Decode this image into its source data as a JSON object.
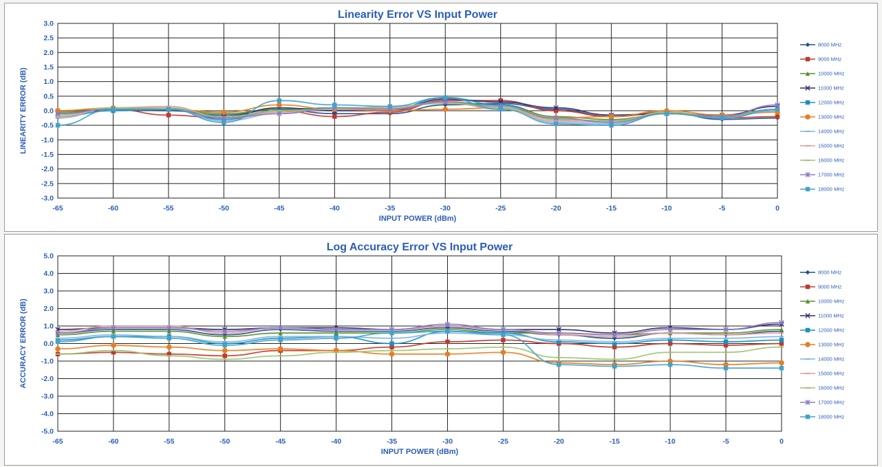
{
  "chart_data": [
    {
      "type": "line",
      "title": "Linearity Error VS Input Power",
      "xlabel": "INPUT POWER (dBm)",
      "ylabel": "LINEARITY ERROR (dB)",
      "x": [
        -65,
        -60,
        -55,
        -50,
        -45,
        -40,
        -35,
        -30,
        -25,
        -20,
        -15,
        -10,
        -5,
        0
      ],
      "xlim": [
        -65,
        0
      ],
      "ylim": [
        -3.0,
        3.0
      ],
      "yticks": [
        "3.0",
        "2.5",
        "2.0",
        "1.5",
        "1.0",
        "0.5",
        "0.0",
        "-0.5",
        "-1.0",
        "-1.5",
        "-2.0",
        "-2.5",
        "-3.0"
      ],
      "xticks": [
        "-65",
        "-60",
        "-55",
        "-50",
        "-45",
        "-40",
        "-35",
        "-30",
        "-25",
        "-20",
        "-15",
        "-10",
        "-5",
        "0"
      ],
      "grid": true,
      "legend_position": "right",
      "series": [
        {
          "name": "8000 MHz",
          "color": "#1f4e8c",
          "values": [
            0.0,
            0.05,
            0.0,
            -0.15,
            0.05,
            -0.1,
            -0.1,
            0.2,
            0.25,
            0.05,
            -0.2,
            -0.05,
            -0.3,
            -0.25
          ]
        },
        {
          "name": "9000 MHz",
          "color": "#c0392b",
          "values": [
            0.0,
            0.05,
            -0.15,
            -0.25,
            0.0,
            -0.2,
            -0.05,
            0.35,
            0.35,
            0.0,
            -0.2,
            -0.05,
            -0.25,
            -0.2
          ]
        },
        {
          "name": "10000 MHz",
          "color": "#5a8f29",
          "values": [
            -0.05,
            0.05,
            0.05,
            -0.1,
            0.05,
            0.1,
            0.1,
            0.3,
            0.2,
            -0.2,
            -0.3,
            -0.1,
            -0.15,
            0.05
          ]
        },
        {
          "name": "11000 MHz",
          "color": "#2e2a6e",
          "values": [
            -0.1,
            0.05,
            0.05,
            -0.2,
            0.1,
            0.0,
            0.0,
            0.4,
            0.3,
            0.1,
            -0.15,
            -0.1,
            -0.15,
            0.15
          ]
        },
        {
          "name": "12000 MHz",
          "color": "#1b8fc0",
          "values": [
            -0.2,
            0.0,
            0.05,
            -0.3,
            0.0,
            0.1,
            0.05,
            0.45,
            0.2,
            -0.3,
            -0.35,
            -0.1,
            -0.2,
            0.0
          ]
        },
        {
          "name": "13000 MHz",
          "color": "#e67e22",
          "values": [
            0.0,
            0.1,
            0.05,
            -0.05,
            0.2,
            0.05,
            0.0,
            0.05,
            0.1,
            -0.25,
            -0.2,
            0.0,
            -0.15,
            -0.05
          ]
        },
        {
          "name": "14000 MHz",
          "color": "#7fb2e5",
          "values": [
            -0.25,
            0.1,
            0.1,
            -0.35,
            -0.1,
            0.1,
            0.1,
            0.3,
            0.1,
            -0.4,
            -0.45,
            -0.1,
            -0.25,
            0.0
          ]
        },
        {
          "name": "15000 MHz",
          "color": "#e79a9a",
          "values": [
            -0.2,
            0.1,
            0.15,
            -0.25,
            -0.05,
            0.05,
            0.1,
            0.3,
            0.05,
            -0.35,
            -0.4,
            -0.05,
            -0.2,
            0.05
          ]
        },
        {
          "name": "16000 MHz",
          "color": "#9dc46a",
          "values": [
            -0.15,
            0.1,
            0.1,
            -0.2,
            0.0,
            0.05,
            0.15,
            0.25,
            0.1,
            -0.3,
            -0.35,
            -0.05,
            -0.2,
            0.05
          ]
        },
        {
          "name": "17000 MHz",
          "color": "#8e7cc3",
          "values": [
            -0.1,
            0.05,
            0.05,
            -0.25,
            -0.1,
            0.1,
            0.05,
            0.3,
            0.15,
            -0.25,
            -0.4,
            -0.1,
            -0.2,
            0.2
          ]
        },
        {
          "name": "18000 MHz",
          "color": "#3fa4c9",
          "values": [
            -0.5,
            0.05,
            0.05,
            -0.4,
            0.35,
            0.2,
            0.15,
            0.45,
            0.05,
            -0.45,
            -0.5,
            -0.1,
            -0.25,
            0.05
          ]
        }
      ]
    },
    {
      "type": "line",
      "title": "Log Accuracy Error VS Input Power",
      "xlabel": "INPUT POWER (dBm)",
      "ylabel": "ACCURACY ERROR (dB)",
      "x": [
        -65,
        -60,
        -55,
        -50,
        -45,
        -40,
        -35,
        -30,
        -25,
        -20,
        -15,
        -10,
        -5,
        0
      ],
      "xlim": [
        -65,
        0
      ],
      "ylim": [
        -5.0,
        5.0
      ],
      "yticks": [
        "5.0",
        "4.0",
        "3.0",
        "2.0",
        "1.0",
        "0.0",
        "-1.0",
        "-2.0",
        "-3.0",
        "-4.0",
        "-5.0"
      ],
      "xticks": [
        "-65",
        "-60",
        "-55",
        "-50",
        "-45",
        "-40",
        "-35",
        "-30",
        "-25",
        "-20",
        "-15",
        "-10",
        "-5",
        "0"
      ],
      "grid": true,
      "legend_position": "right",
      "series": [
        {
          "name": "8000 MHz",
          "color": "#1f4e8c",
          "values": [
            0.6,
            0.8,
            0.8,
            0.5,
            0.8,
            0.7,
            0.7,
            0.9,
            0.7,
            0.5,
            0.3,
            0.6,
            0.5,
            0.7
          ]
        },
        {
          "name": "9000 MHz",
          "color": "#c0392b",
          "values": [
            -0.6,
            -0.5,
            -0.6,
            -0.7,
            -0.4,
            -0.4,
            -0.2,
            0.1,
            0.2,
            0.0,
            -0.2,
            0.0,
            -0.1,
            0.0
          ]
        },
        {
          "name": "10000 MHz",
          "color": "#5a8f29",
          "values": [
            0.5,
            0.7,
            0.7,
            0.4,
            0.6,
            0.6,
            0.6,
            0.8,
            0.6,
            0.6,
            0.5,
            0.6,
            0.6,
            0.8
          ]
        },
        {
          "name": "11000 MHz",
          "color": "#2e2a6e",
          "values": [
            0.8,
            0.9,
            0.9,
            0.8,
            0.9,
            0.9,
            0.8,
            1.0,
            0.8,
            0.8,
            0.6,
            0.9,
            0.8,
            1.1
          ]
        },
        {
          "name": "12000 MHz",
          "color": "#1b8fc0",
          "values": [
            0.2,
            0.4,
            0.4,
            0.0,
            0.3,
            0.4,
            0.0,
            0.7,
            0.6,
            0.1,
            0.0,
            0.2,
            0.1,
            0.2
          ]
        },
        {
          "name": "13000 MHz",
          "color": "#e67e22",
          "values": [
            -0.3,
            -0.1,
            -0.2,
            -0.4,
            -0.3,
            -0.4,
            -0.6,
            -0.6,
            -0.5,
            -1.1,
            -1.2,
            -1.0,
            -1.2,
            -1.1
          ]
        },
        {
          "name": "14000 MHz",
          "color": "#7fb2e5",
          "values": [
            0.3,
            0.5,
            0.4,
            0.1,
            0.4,
            0.4,
            0.3,
            0.6,
            0.5,
            0.2,
            0.1,
            0.3,
            0.3,
            0.4
          ]
        },
        {
          "name": "15000 MHz",
          "color": "#e79a9a",
          "values": [
            0.7,
            1.0,
            1.0,
            0.6,
            0.9,
            0.8,
            0.8,
            1.0,
            0.8,
            0.5,
            0.4,
            0.6,
            0.5,
            0.6
          ]
        },
        {
          "name": "16000 MHz",
          "color": "#9dc46a",
          "values": [
            -0.6,
            -0.4,
            -0.7,
            -0.9,
            -0.7,
            -0.5,
            -0.4,
            -0.3,
            -0.2,
            -0.8,
            -0.9,
            -0.5,
            -0.5,
            -0.2
          ]
        },
        {
          "name": "17000 MHz",
          "color": "#8e7cc3",
          "values": [
            0.6,
            0.9,
            0.9,
            0.7,
            0.9,
            0.8,
            0.8,
            1.1,
            0.8,
            0.6,
            0.5,
            0.8,
            0.8,
            1.2
          ]
        },
        {
          "name": "18000 MHz",
          "color": "#3fa4c9",
          "values": [
            0.1,
            0.4,
            0.3,
            -0.1,
            0.2,
            0.3,
            0.6,
            0.7,
            0.5,
            -1.2,
            -1.3,
            -1.2,
            -1.4,
            -1.4
          ]
        }
      ]
    }
  ]
}
